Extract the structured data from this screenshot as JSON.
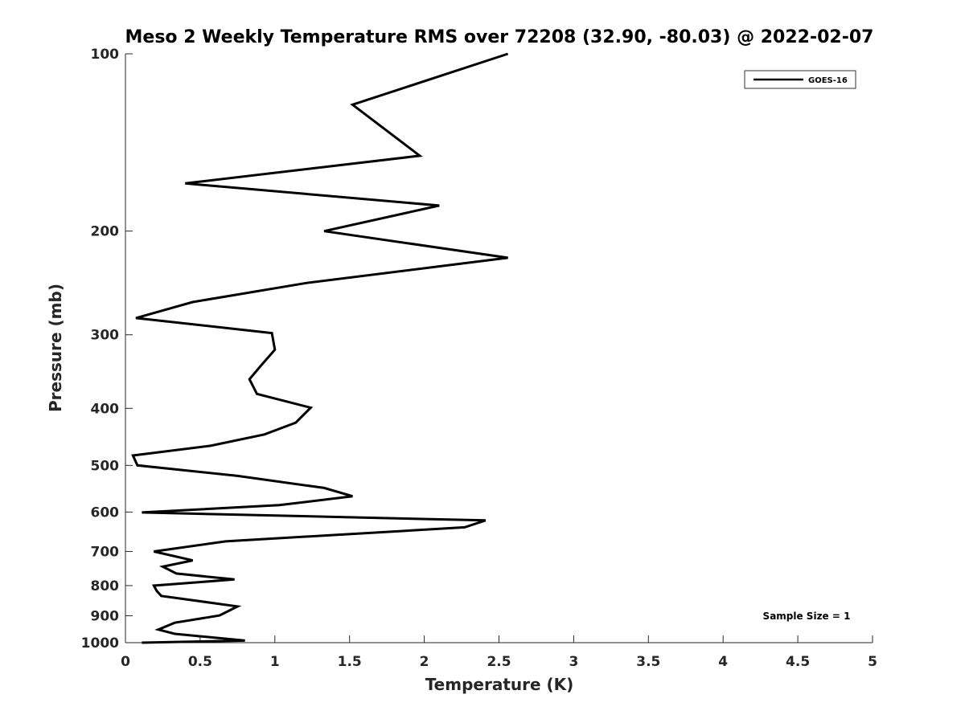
{
  "chart_data": {
    "type": "line",
    "title": "Meso 2 Weekly Temperature RMS over 72208 (32.90, -80.03) @ 2022-02-07",
    "xlabel": "Temperature (K)",
    "ylabel": "Pressure (mb)",
    "xlim": [
      0,
      5
    ],
    "ylim": [
      100,
      1000
    ],
    "y_scale": "log",
    "y_reversed": true,
    "x_ticks": [
      0,
      0.5,
      1,
      1.5,
      2,
      2.5,
      3,
      3.5,
      4,
      4.5,
      5
    ],
    "x_tick_labels": [
      "0",
      "0.5",
      "1",
      "1.5",
      "2",
      "2.5",
      "3",
      "3.5",
      "4",
      "4.5",
      "5"
    ],
    "y_ticks": [
      100,
      200,
      300,
      400,
      500,
      600,
      700,
      800,
      900,
      1000
    ],
    "y_tick_labels": [
      "100",
      "200",
      "300",
      "400",
      "500",
      "600",
      "700",
      "800",
      "900",
      "1000"
    ],
    "grid": false,
    "legend_position": "top-right",
    "annotation": "Sample Size = 1",
    "series": [
      {
        "name": "GOES-16",
        "color": "#000000",
        "x": [
          2.56,
          1.52,
          1.97,
          0.4,
          2.1,
          1.33,
          2.56,
          1.21,
          0.45,
          0.07,
          0.98,
          1.0,
          0.9,
          0.83,
          0.88,
          1.24,
          1.14,
          0.93,
          0.57,
          0.05,
          0.08,
          0.75,
          1.33,
          1.52,
          1.03,
          0.11,
          2.41,
          2.27,
          0.67,
          0.19,
          0.45,
          0.25,
          0.34,
          0.73,
          0.19,
          0.21,
          0.24,
          0.75,
          0.63,
          0.33,
          0.22,
          0.33,
          0.8,
          0.11
        ],
        "y": [
          100,
          122,
          149,
          166,
          181,
          200,
          222,
          245,
          264,
          281,
          298,
          318,
          340,
          357,
          378,
          399,
          423,
          443,
          463,
          481,
          500,
          521,
          546,
          564,
          584,
          601,
          620,
          637,
          673,
          700,
          725,
          743,
          763,
          781,
          800,
          817,
          833,
          868,
          899,
          925,
          950,
          966,
          992,
          1000
        ]
      }
    ]
  }
}
